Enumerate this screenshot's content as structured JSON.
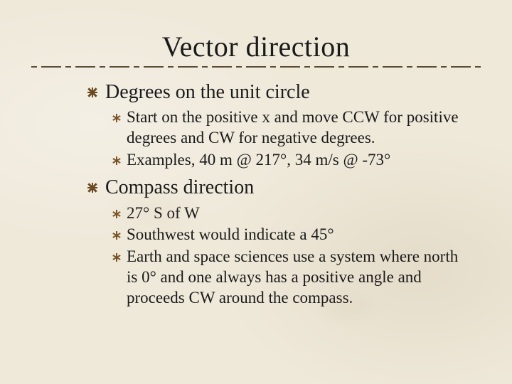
{
  "colors": {
    "background": "#efe9da",
    "text": "#1a1a1a",
    "bullet_lvl1": "#6b4a23",
    "bullet_lvl2": "#7a5528",
    "rule": "#4a3a24"
  },
  "typography": {
    "family": "Times New Roman",
    "title_pt": 40,
    "lvl1_pt": 28,
    "lvl2_pt": 23
  },
  "title": "Vector direction",
  "sections": [
    {
      "heading": "Degrees on the unit circle",
      "items": [
        "Start on the positive x and move CCW for positive degrees and CW for negative degrees.",
        "Examples, 40 m @ 217°, 34 m/s @ -73°"
      ]
    },
    {
      "heading": "Compass direction",
      "items": [
        "27° S of W",
        "Southwest would indicate a 45°",
        "Earth and space sciences use a system where north is 0° and one always has a positive angle and proceeds CW around the compass."
      ]
    }
  ]
}
